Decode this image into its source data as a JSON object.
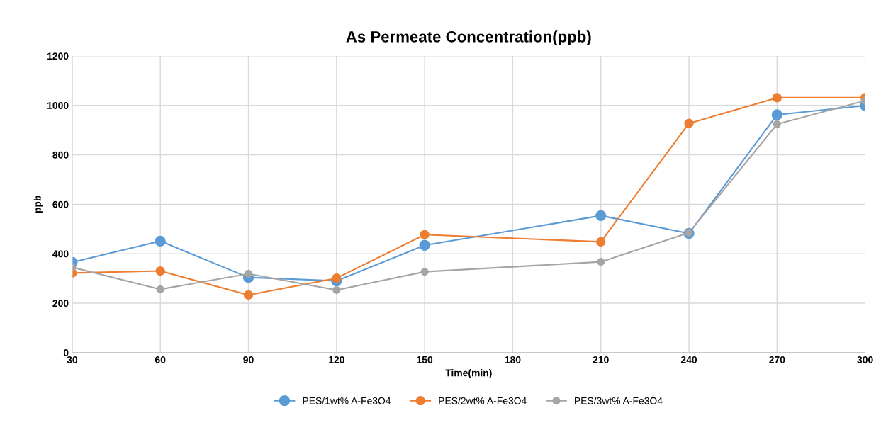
{
  "chart_data": {
    "type": "line",
    "title": "As Permeate Concentration(ppb)",
    "xlabel": "Time(min)",
    "ylabel": "ppb",
    "x": [
      30,
      60,
      90,
      120,
      150,
      210,
      240,
      270,
      300
    ],
    "series": [
      {
        "name": "PES/1wt% A-Fe3O4",
        "color": "#5b9bd5",
        "values": [
          365,
          451,
          304,
          290,
          434,
          554,
          482,
          962,
          999
        ]
      },
      {
        "name": "PES/2wt% A-Fe3O4",
        "color": "#ed7d31",
        "values": [
          322,
          330,
          233,
          301,
          477,
          448,
          927,
          1031,
          1031
        ]
      },
      {
        "name": "PES/3wt% A-Fe3O4",
        "color": "#a5a5a5",
        "values": [
          345,
          256,
          319,
          253,
          327,
          367,
          485,
          924,
          1019
        ]
      }
    ],
    "xlim": [
      30,
      300
    ],
    "xticks": [
      30,
      60,
      90,
      120,
      150,
      180,
      210,
      240,
      270,
      300
    ],
    "ylim": [
      0,
      1200
    ],
    "yticks": [
      0,
      200,
      400,
      600,
      800,
      1000,
      1200
    ],
    "grid": true,
    "legend": "bottom",
    "marker": "circle",
    "line_style": "solid"
  }
}
